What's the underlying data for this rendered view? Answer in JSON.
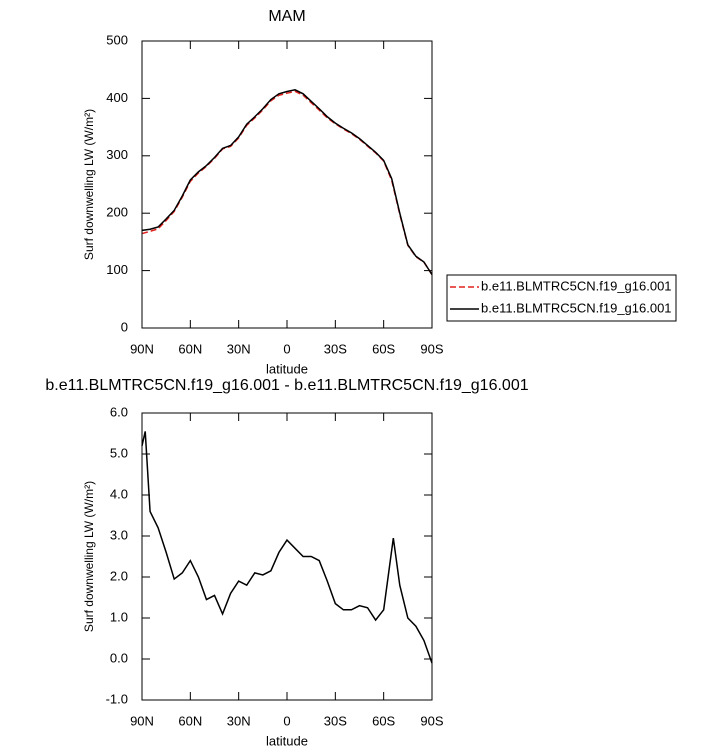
{
  "chart_data": [
    {
      "type": "line",
      "title": "MAM",
      "xlabel": "latitude",
      "ylabel": "Surf downwelling LW (W/m²)",
      "x": [
        90,
        85,
        80,
        75,
        70,
        65,
        60,
        55,
        50,
        45,
        40,
        35,
        30,
        25,
        20,
        15,
        10,
        5,
        0,
        -5,
        -10,
        -15,
        -20,
        -25,
        -30,
        -35,
        -40,
        -45,
        -50,
        -55,
        -60,
        -65,
        -70,
        -75,
        -80,
        -85,
        -90
      ],
      "series": [
        {
          "name": "b.e11.BLMTRC5CN.f19_g16.001",
          "color": "#e0201b",
          "line_style": "dashed",
          "values": [
            164.5,
            168.4,
            172.8,
            187.4,
            203.1,
            227.9,
            255.6,
            270,
            281.6,
            295.5,
            311.9,
            316.4,
            331.1,
            353.2,
            365.9,
            380,
            395.9,
            405.4,
            409.1,
            412.3,
            405.5,
            392.5,
            379.6,
            366.1,
            355.7,
            346.8,
            338.8,
            328.7,
            316.8,
            305.1,
            290.8,
            257.1,
            198.2,
            144,
            124.2,
            114.6,
            93.1
          ]
        },
        {
          "name": "b.e11.BLMTRC5CN.f19_g16.001",
          "color": "#000000",
          "line_style": "solid",
          "values": [
            170,
            172,
            176,
            190,
            205,
            230,
            258,
            272,
            283,
            297,
            313,
            318,
            333,
            355,
            368,
            382,
            398,
            408,
            412,
            415,
            408,
            395,
            382,
            368,
            357,
            348,
            340,
            330,
            318,
            306,
            292,
            260,
            200,
            145,
            125,
            115,
            93
          ]
        }
      ],
      "xlim": [
        90,
        -90
      ],
      "xticks": [
        {
          "value": 90,
          "label": "90N"
        },
        {
          "value": 60,
          "label": "60N"
        },
        {
          "value": 30,
          "label": "30N"
        },
        0,
        {
          "value": -30,
          "label": "30S"
        },
        {
          "value": -60,
          "label": "60S"
        },
        {
          "value": -90,
          "label": "90S"
        }
      ],
      "ylim": [
        0,
        500
      ],
      "yticks": [
        0,
        100,
        200,
        300,
        400,
        500
      ],
      "legend": "outside right"
    },
    {
      "type": "line",
      "title": "b.e11.BLMTRC5CN.f19_g16.001 - b.e11.BLMTRC5CN.f19_g16.001",
      "xlabel": "latitude",
      "ylabel": "Surf downwelling LW (W/m²)",
      "x": [
        90,
        88,
        85,
        80,
        75,
        70,
        65,
        60,
        55,
        50,
        45,
        40,
        35,
        30,
        25,
        20,
        15,
        10,
        5,
        0,
        -5,
        -10,
        -15,
        -20,
        -25,
        -30,
        -35,
        -40,
        -45,
        -50,
        -55,
        -60,
        -66,
        -70,
        -75,
        -80,
        -85,
        -90
      ],
      "series": [
        {
          "color": "#000000",
          "line_style": "solid",
          "values": [
            5.2,
            5.55,
            3.6,
            3.2,
            2.6,
            1.95,
            2.1,
            2.4,
            2.0,
            1.45,
            1.55,
            1.1,
            1.6,
            1.9,
            1.8,
            2.1,
            2.05,
            2.15,
            2.6,
            2.9,
            2.7,
            2.5,
            2.5,
            2.4,
            1.9,
            1.35,
            1.2,
            1.2,
            1.3,
            1.25,
            0.95,
            1.2,
            2.95,
            1.8,
            1.0,
            0.8,
            0.45,
            -0.1
          ]
        }
      ],
      "xlim": [
        90,
        -90
      ],
      "xticks": [
        {
          "value": 90,
          "label": "90N"
        },
        {
          "value": 60,
          "label": "60N"
        },
        {
          "value": 30,
          "label": "30N"
        },
        0,
        {
          "value": -30,
          "label": "30S"
        },
        {
          "value": -60,
          "label": "60S"
        },
        {
          "value": -90,
          "label": "90S"
        }
      ],
      "ylim": [
        -1,
        6
      ],
      "yticks": [
        {
          "value": -1,
          "label": "-1.0"
        },
        {
          "value": 0,
          "label": "0.0"
        },
        {
          "value": 1,
          "label": "1.0"
        },
        {
          "value": 2,
          "label": "2.0"
        },
        {
          "value": 3,
          "label": "3.0"
        },
        {
          "value": 4,
          "label": "4.0"
        },
        {
          "value": 5,
          "label": "5.0"
        },
        {
          "value": 6,
          "label": "6.0"
        }
      ]
    }
  ]
}
